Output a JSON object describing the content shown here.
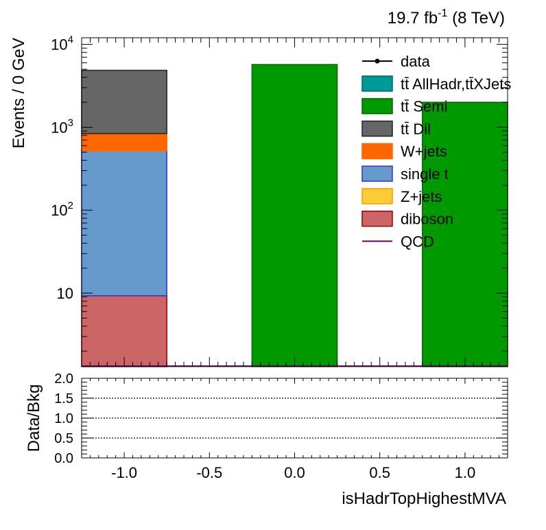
{
  "header": {
    "lumi_value": "19.7 fb",
    "lumi_exp": "-1",
    "energy": " (8 TeV)"
  },
  "chart_data": [
    {
      "type": "bar",
      "stacked": true,
      "log_y": true,
      "ylabel": "Events / 0 GeV",
      "ylim": [
        1.3,
        12000
      ],
      "xlim": [
        -1.25,
        1.25
      ],
      "x_ticks": [
        "-1.0",
        "-0.5",
        "0.0",
        "0.5",
        "1.0"
      ],
      "y_ticks": [
        {
          "value": 10000,
          "label": "10",
          "exp": "4"
        },
        {
          "value": 1000,
          "label": "10",
          "exp": "3"
        },
        {
          "value": 100,
          "label": "10",
          "exp": "2"
        },
        {
          "value": 10,
          "label": "10",
          "exp": ""
        }
      ],
      "bins": [
        {
          "x_low": -1.25,
          "x_high": -0.75
        },
        {
          "x_low": -0.25,
          "x_high": 0.25
        },
        {
          "x_low": 0.75,
          "x_high": 1.25
        }
      ],
      "series": [
        {
          "name": "diboson",
          "color": "#cc6666",
          "stroke": "#990000",
          "values": [
            9.3,
            0,
            0
          ]
        },
        {
          "name": "Z+jets",
          "color": "#ffcc33",
          "stroke": "#ff9900",
          "values": [
            0,
            0,
            0
          ]
        },
        {
          "name": "single t",
          "color": "#6699cc",
          "stroke": "#3333cc",
          "values": [
            510,
            0,
            0
          ]
        },
        {
          "name": "W+jets",
          "color": "#ff6600",
          "stroke": "#ff6600",
          "values": [
            320,
            0,
            0
          ]
        },
        {
          "name": "tt̄ Dil",
          "color": "#666666",
          "stroke": "#222222",
          "values": [
            4020,
            0,
            0
          ]
        },
        {
          "name": "tt̄ Semi",
          "color": "#009900",
          "stroke": "#006600",
          "values": [
            0,
            5700,
            2000
          ]
        },
        {
          "name": "tt̄ AllHadr,tt̄XJets",
          "color": "#009999",
          "stroke": "#006666",
          "values": [
            0,
            0,
            0
          ]
        }
      ],
      "qcd": {
        "name": "QCD",
        "color": "#660066",
        "values": [
          0,
          0,
          0
        ]
      },
      "data": {
        "name": "data",
        "color": "#000000"
      },
      "legend": {
        "position": "top-right",
        "entries": [
          {
            "name": "data",
            "kind": "marker",
            "color": "#000000",
            "stroke": "#000000"
          },
          {
            "name": "tt̄ AllHadr,tt̄XJets",
            "kind": "box",
            "color": "#009999",
            "stroke": "#006666"
          },
          {
            "name": "tt̄ Semi",
            "kind": "box",
            "color": "#009900",
            "stroke": "#006600"
          },
          {
            "name": "tt̄ Dil",
            "kind": "box",
            "color": "#666666",
            "stroke": "#222222"
          },
          {
            "name": "W+jets",
            "kind": "box",
            "color": "#ff6600",
            "stroke": "#ff6600"
          },
          {
            "name": "single t",
            "kind": "box",
            "color": "#6699cc",
            "stroke": "#3333cc"
          },
          {
            "name": "Z+jets",
            "kind": "box",
            "color": "#ffcc33",
            "stroke": "#ff9900"
          },
          {
            "name": "diboson",
            "kind": "box",
            "color": "#cc6666",
            "stroke": "#990000"
          },
          {
            "name": "QCD",
            "kind": "line",
            "color": "#660066",
            "stroke": "#660066"
          }
        ]
      }
    },
    {
      "type": "line",
      "ylabel": "Data/Bkg",
      "xlabel": "isHadrTopHighestMVA",
      "ylim": [
        0.0,
        2.0
      ],
      "xlim": [
        -1.25,
        1.25
      ],
      "x_ticks": [
        "-1.0",
        "-0.5",
        "0.0",
        "0.5",
        "1.0"
      ],
      "y_ticks": [
        "2.0",
        "1.5",
        "1.0",
        "0.5",
        "0.0"
      ],
      "reference_lines": [
        0.5,
        1.0,
        1.5
      ]
    }
  ]
}
